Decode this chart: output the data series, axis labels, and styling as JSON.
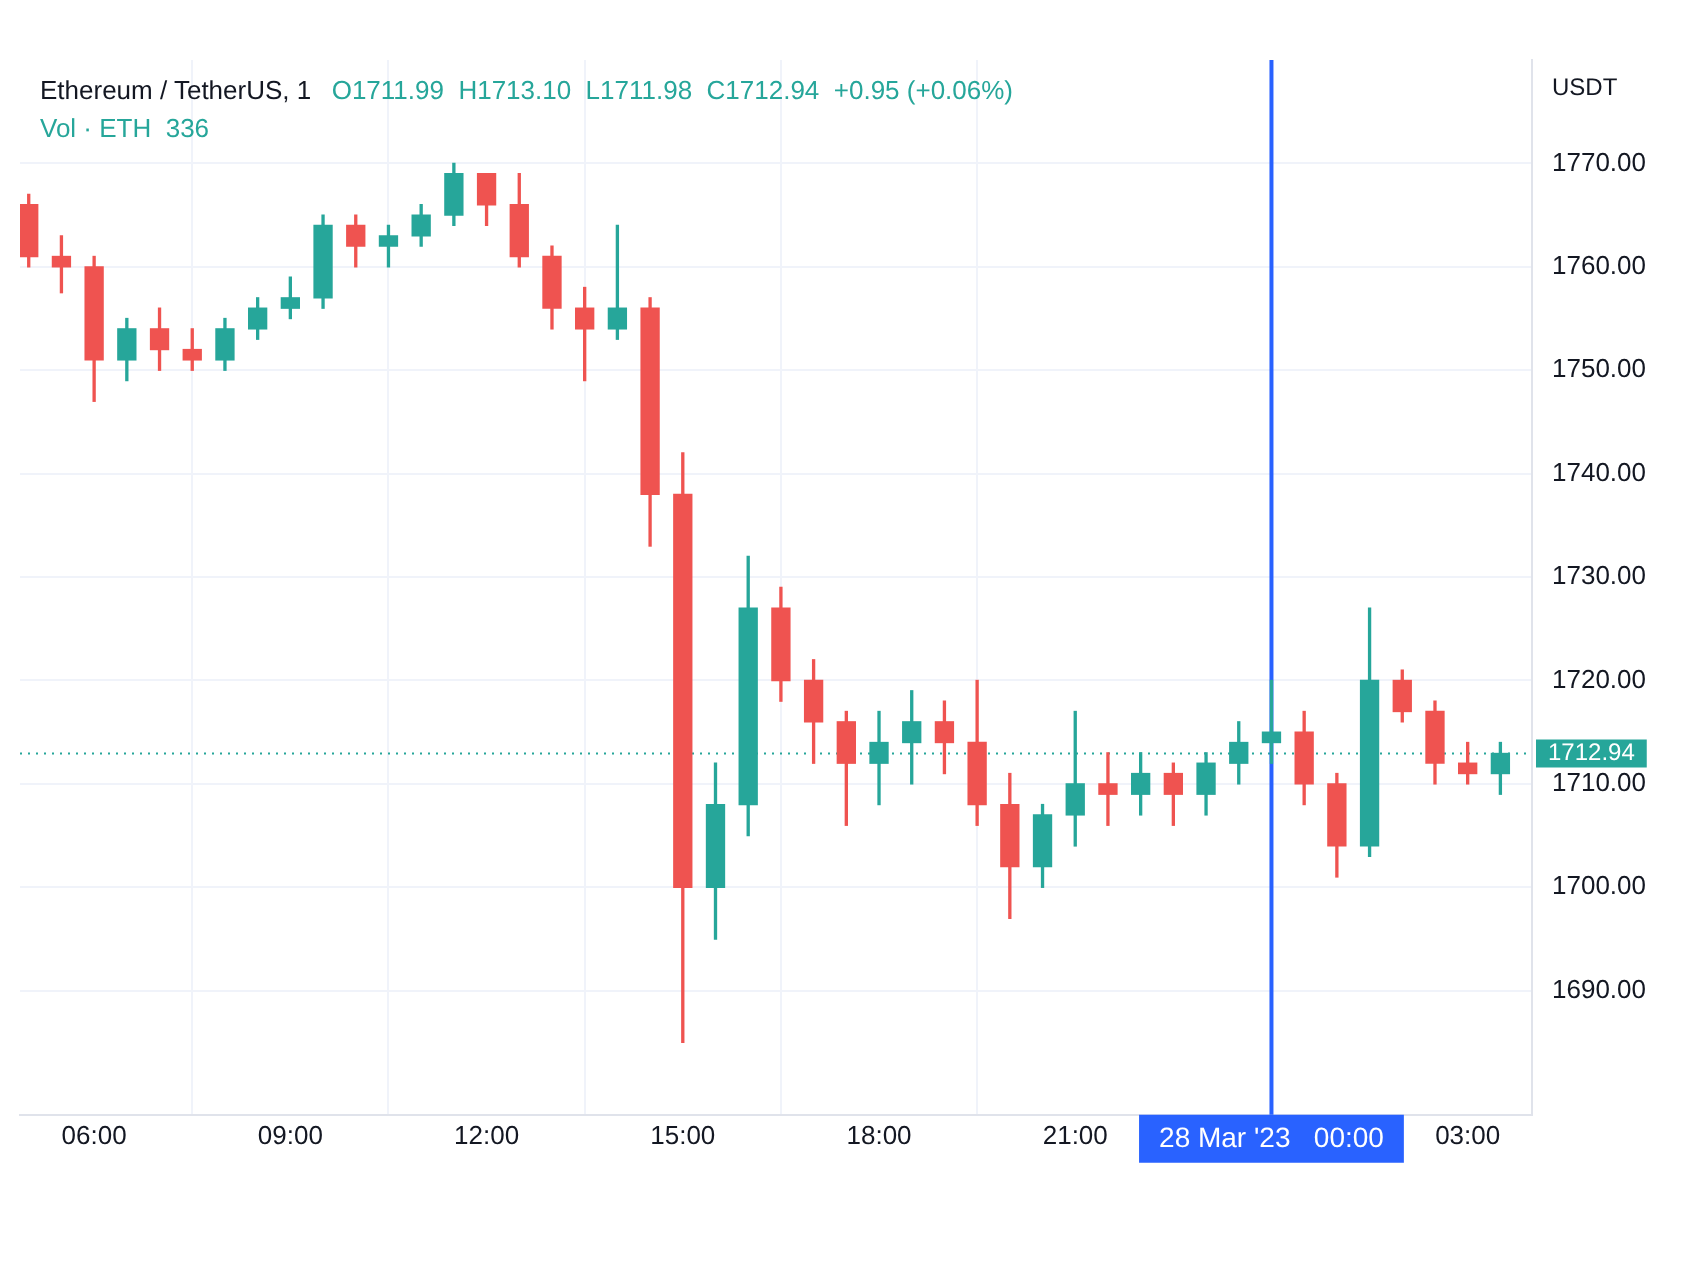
{
  "chart_data": {
    "type": "candlestick",
    "title": "Ethereum / TetherUS, 1",
    "ylabel": "USDT",
    "annotations": [
      "O1711.99  H1713.10  L1711.98  C1712.94  +0.95 (+0.06%)",
      "Vol · ETH  336"
    ],
    "x": [
      "2023-03-27T05:00",
      "2023-03-27T05:30",
      "2023-03-27T06:00",
      "2023-03-27T06:30",
      "2023-03-27T07:00",
      "2023-03-27T07:30",
      "2023-03-27T08:00",
      "2023-03-27T08:30",
      "2023-03-27T09:00",
      "2023-03-27T09:30",
      "2023-03-27T10:00",
      "2023-03-27T10:30",
      "2023-03-27T11:00",
      "2023-03-27T11:30",
      "2023-03-27T12:00",
      "2023-03-27T12:30",
      "2023-03-27T13:00",
      "2023-03-27T13:30",
      "2023-03-27T14:00",
      "2023-03-27T14:30",
      "2023-03-27T15:00",
      "2023-03-27T15:30",
      "2023-03-27T16:00",
      "2023-03-27T16:30",
      "2023-03-27T17:00",
      "2023-03-27T17:30",
      "2023-03-27T18:00",
      "2023-03-27T18:30",
      "2023-03-27T19:00",
      "2023-03-27T19:30",
      "2023-03-27T20:00",
      "2023-03-27T20:30",
      "2023-03-27T21:00",
      "2023-03-27T21:30",
      "2023-03-27T22:00",
      "2023-03-27T22:30",
      "2023-03-27T23:00",
      "2023-03-27T23:30",
      "2023-03-28T00:00",
      "2023-03-28T00:30",
      "2023-03-28T01:00",
      "2023-03-28T01:30",
      "2023-03-28T02:00",
      "2023-03-28T02:30",
      "2023-03-28T03:00",
      "2023-03-28T03:30"
    ],
    "ohlc": [
      [
        1766,
        1767,
        1760,
        1761
      ],
      [
        1761,
        1763,
        1757.5,
        1760
      ],
      [
        1760,
        1761,
        1747,
        1751
      ],
      [
        1751,
        1755,
        1749,
        1754
      ],
      [
        1754,
        1756,
        1750,
        1752
      ],
      [
        1752,
        1754,
        1750,
        1751
      ],
      [
        1751,
        1755,
        1750,
        1754
      ],
      [
        1754,
        1757,
        1753,
        1756
      ],
      [
        1756,
        1759,
        1755,
        1757
      ],
      [
        1757,
        1765,
        1756,
        1764
      ],
      [
        1764,
        1765,
        1760,
        1762
      ],
      [
        1762,
        1764,
        1760,
        1763
      ],
      [
        1763,
        1766,
        1762,
        1765
      ],
      [
        1765,
        1770,
        1764,
        1769
      ],
      [
        1769,
        1769,
        1764,
        1766
      ],
      [
        1766,
        1769,
        1760,
        1761
      ],
      [
        1761,
        1762,
        1754,
        1756
      ],
      [
        1756,
        1758,
        1749,
        1754
      ],
      [
        1754,
        1764,
        1753,
        1756
      ],
      [
        1756,
        1757,
        1733,
        1738
      ],
      [
        1738,
        1742,
        1685,
        1700
      ],
      [
        1700,
        1712,
        1695,
        1708
      ],
      [
        1708,
        1732,
        1705,
        1727
      ],
      [
        1727,
        1729,
        1718,
        1720
      ],
      [
        1720,
        1722,
        1712,
        1716
      ],
      [
        1716,
        1717,
        1706,
        1712
      ],
      [
        1712,
        1717,
        1708,
        1714
      ],
      [
        1714,
        1719,
        1710,
        1716
      ],
      [
        1716,
        1718,
        1711,
        1714
      ],
      [
        1714,
        1720,
        1706,
        1708
      ],
      [
        1708,
        1711,
        1697,
        1702
      ],
      [
        1702,
        1708,
        1700,
        1707
      ],
      [
        1707,
        1717,
        1704,
        1710
      ],
      [
        1710,
        1713,
        1706,
        1709
      ],
      [
        1709,
        1713,
        1707,
        1711
      ],
      [
        1711,
        1712,
        1706,
        1709
      ],
      [
        1709,
        1713,
        1707,
        1712
      ],
      [
        1712,
        1716,
        1710,
        1714
      ],
      [
        1714,
        1720,
        1712,
        1715
      ],
      [
        1715,
        1717,
        1708,
        1710
      ],
      [
        1710,
        1711,
        1701,
        1704
      ],
      [
        1704,
        1727,
        1703,
        1720
      ],
      [
        1720,
        1721,
        1716,
        1717
      ],
      [
        1717,
        1718,
        1710,
        1712
      ],
      [
        1712,
        1714,
        1710,
        1711
      ],
      [
        1711,
        1714,
        1709,
        1712.94
      ]
    ],
    "colors": [
      "#ef5350",
      "#ef5350",
      "#ef5350",
      "#26a69a",
      "#ef5350",
      "#ef5350",
      "#26a69a",
      "#26a69a",
      "#26a69a",
      "#26a69a",
      "#ef5350",
      "#26a69a",
      "#26a69a",
      "#26a69a",
      "#ef5350",
      "#ef5350",
      "#ef5350",
      "#ef5350",
      "#26a69a",
      "#ef5350",
      "#ef5350",
      "#26a69a",
      "#26a69a",
      "#ef5350",
      "#ef5350",
      "#ef5350",
      "#26a69a",
      "#26a69a",
      "#ef5350",
      "#ef5350",
      "#ef5350",
      "#26a69a",
      "#26a69a",
      "#ef5350",
      "#26a69a",
      "#ef5350",
      "#26a69a",
      "#26a69a",
      "#26a69a",
      "#ef5350",
      "#ef5350",
      "#26a69a",
      "#ef5350",
      "#ef5350",
      "#ef5350",
      "#26a69a"
    ],
    "xlim": [
      "2023-03-27T04:52",
      "2023-03-28T03:59"
    ],
    "xticks": [
      {
        "value": "2023-03-27T06:00",
        "label": "06:00"
      },
      {
        "value": "2023-03-27T09:00",
        "label": "09:00"
      },
      {
        "value": "2023-03-27T12:00",
        "label": "12:00"
      },
      {
        "value": "2023-03-27T15:00",
        "label": "15:00"
      },
      {
        "value": "2023-03-27T18:00",
        "label": "18:00"
      },
      {
        "value": "2023-03-27T21:00",
        "label": "21:00"
      },
      {
        "value": "2023-03-28T03:00",
        "label": "03:00"
      }
    ],
    "ylim": [
      1678,
      1780
    ],
    "yticks": [
      {
        "value": 1690,
        "label": "1690.00"
      },
      {
        "value": 1700,
        "label": "1700.00"
      },
      {
        "value": 1710,
        "label": "1710.00"
      },
      {
        "value": 1720,
        "label": "1720.00"
      },
      {
        "value": 1730,
        "label": "1730.00"
      },
      {
        "value": 1740,
        "label": "1740.00"
      },
      {
        "value": 1750,
        "label": "1750.00"
      },
      {
        "value": 1760,
        "label": "1760.00"
      },
      {
        "value": 1770,
        "label": "1770.00"
      }
    ],
    "ref_lines": [
      {
        "axis": "y",
        "value": 1712.94,
        "label": "1712.94",
        "color": "#26a69a",
        "line_style": "dotted"
      },
      {
        "axis": "x",
        "value": "2023-03-28T00:00",
        "label": "28 Mar '23   00:00",
        "color": "#2962ff",
        "line_style": "solid"
      }
    ],
    "grid": true,
    "legend": false
  }
}
